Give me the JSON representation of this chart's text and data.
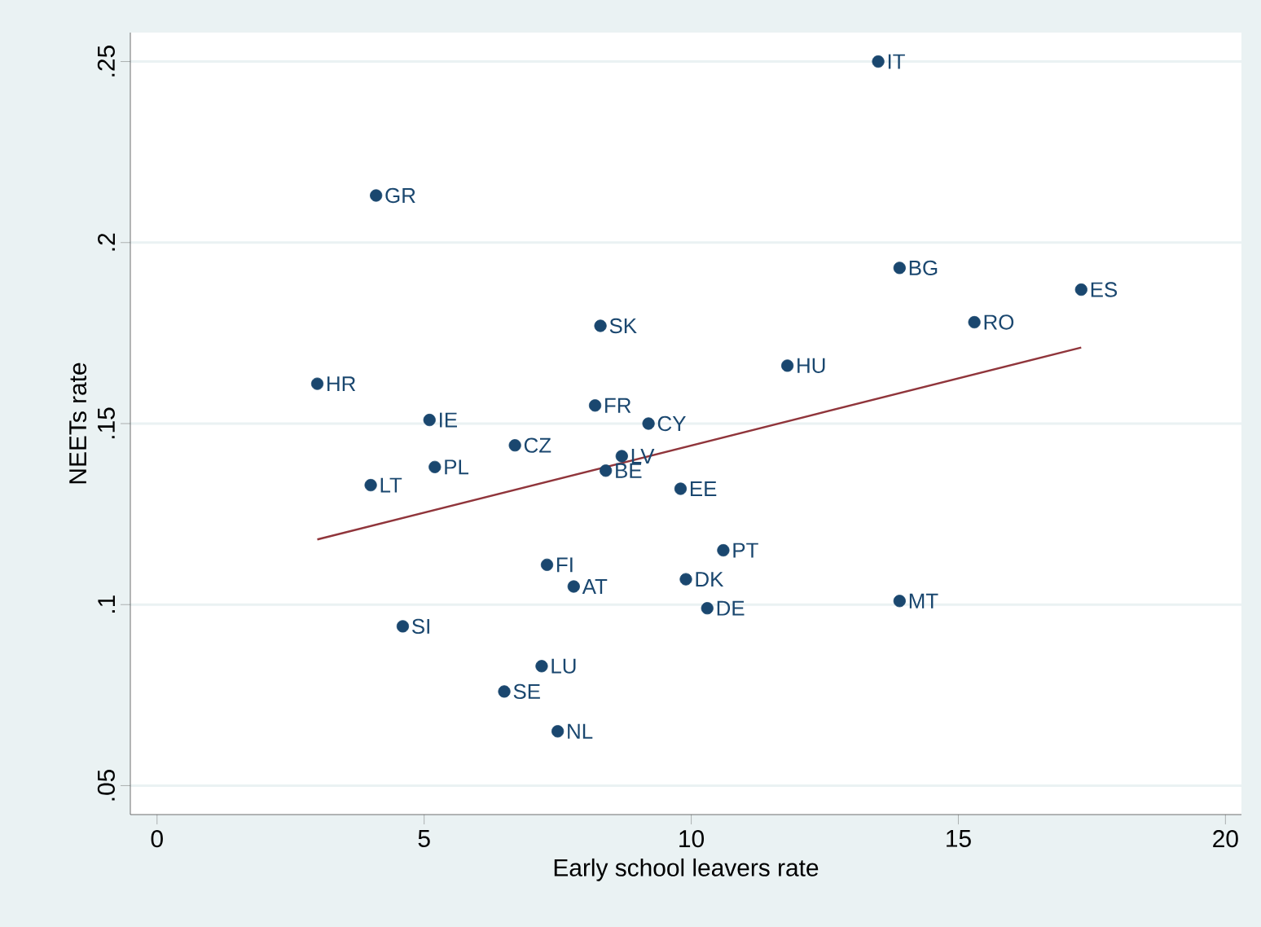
{
  "chart_data": {
    "type": "scatter",
    "xlabel": "Early school leavers rate",
    "ylabel": "NEETs rate",
    "xlim": [
      -0.5,
      20.3
    ],
    "ylim": [
      0.042,
      0.258
    ],
    "xticks": [
      0,
      5,
      10,
      15,
      20
    ],
    "yticks": [
      {
        "value": 0.05,
        "label": ".05"
      },
      {
        "value": 0.1,
        "label": ".1"
      },
      {
        "value": 0.15,
        "label": ".15"
      },
      {
        "value": 0.2,
        "label": ".2"
      },
      {
        "value": 0.25,
        "label": ".25"
      }
    ],
    "grid": "y",
    "marker": "circle",
    "x": [
      13.5,
      4.1,
      13.9,
      17.3,
      15.3,
      8.3,
      11.8,
      3.0,
      8.2,
      5.1,
      9.2,
      6.7,
      8.7,
      5.2,
      8.4,
      4.0,
      9.8,
      10.6,
      7.3,
      9.9,
      7.8,
      13.9,
      10.3,
      4.6,
      7.2,
      6.5,
      7.5
    ],
    "series": [
      {
        "color": "#1a476f",
        "values": [
          0.25,
          0.213,
          0.193,
          0.187,
          0.178,
          0.177,
          0.166,
          0.161,
          0.155,
          0.151,
          0.15,
          0.144,
          0.141,
          0.138,
          0.137,
          0.133,
          0.132,
          0.115,
          0.111,
          0.107,
          0.105,
          0.101,
          0.099,
          0.094,
          0.083,
          0.076,
          0.065
        ]
      },
      {
        "type": "line",
        "marker": "none",
        "color": "#90353b",
        "x": [
          3.0,
          17.3
        ],
        "values": [
          0.118,
          0.171
        ]
      }
    ],
    "annotations": [
      {
        "text": "IT",
        "x": 13.5,
        "y": 0.25
      },
      {
        "text": "GR",
        "x": 4.1,
        "y": 0.213
      },
      {
        "text": "BG",
        "x": 13.9,
        "y": 0.193
      },
      {
        "text": "ES",
        "x": 17.3,
        "y": 0.187
      },
      {
        "text": "RO",
        "x": 15.3,
        "y": 0.178
      },
      {
        "text": "SK",
        "x": 8.3,
        "y": 0.177
      },
      {
        "text": "HU",
        "x": 11.8,
        "y": 0.166
      },
      {
        "text": "HR",
        "x": 3.0,
        "y": 0.161
      },
      {
        "text": "FR",
        "x": 8.2,
        "y": 0.155
      },
      {
        "text": "IE",
        "x": 5.1,
        "y": 0.151
      },
      {
        "text": "CY",
        "x": 9.2,
        "y": 0.15
      },
      {
        "text": "CZ",
        "x": 6.7,
        "y": 0.144
      },
      {
        "text": "LV",
        "x": 8.7,
        "y": 0.141
      },
      {
        "text": "PL",
        "x": 5.2,
        "y": 0.138
      },
      {
        "text": "BE",
        "x": 8.4,
        "y": 0.137
      },
      {
        "text": "LT",
        "x": 4.0,
        "y": 0.133
      },
      {
        "text": "EE",
        "x": 9.8,
        "y": 0.132
      },
      {
        "text": "PT",
        "x": 10.6,
        "y": 0.115
      },
      {
        "text": "FI",
        "x": 7.3,
        "y": 0.111
      },
      {
        "text": "DK",
        "x": 9.9,
        "y": 0.107
      },
      {
        "text": "AT",
        "x": 7.8,
        "y": 0.105
      },
      {
        "text": "MT",
        "x": 13.9,
        "y": 0.101
      },
      {
        "text": "DE",
        "x": 10.3,
        "y": 0.099
      },
      {
        "text": "SI",
        "x": 4.6,
        "y": 0.094
      },
      {
        "text": "LU",
        "x": 7.2,
        "y": 0.083
      },
      {
        "text": "SE",
        "x": 6.5,
        "y": 0.076
      },
      {
        "text": "NL",
        "x": 7.5,
        "y": 0.065
      }
    ]
  }
}
